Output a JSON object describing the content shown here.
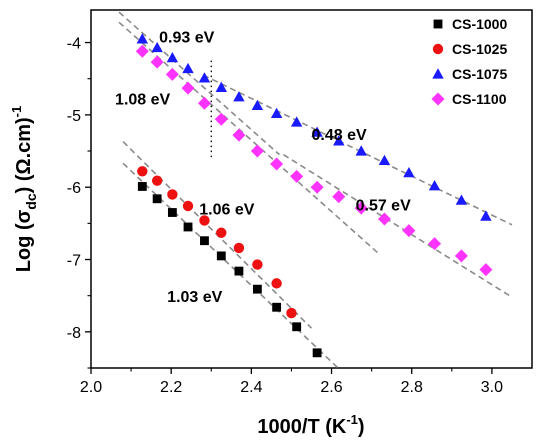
{
  "chart_data": {
    "type": "scatter",
    "xlabel": "1000/T (K⁻¹)",
    "xlabel_main": "1000/T (K",
    "xlabel_sup": "-1",
    "xlabel_close": ")",
    "ylabel_prefix": "Log (σ",
    "ylabel_sub": "dc",
    "ylabel_suffix": ") (Ω.cm)",
    "ylabel_sup": "-1",
    "xlim": [
      2.0,
      3.1
    ],
    "ylim": [
      -8.5,
      -3.55
    ],
    "xticks": [
      {
        "value": 2.0,
        "label": "2.0"
      },
      {
        "value": 2.2,
        "label": "2.2"
      },
      {
        "value": 2.4,
        "label": "2.4"
      },
      {
        "value": 2.6,
        "label": "2.6"
      },
      {
        "value": 2.8,
        "label": "2.8"
      },
      {
        "value": 3.0,
        "label": "3.0"
      }
    ],
    "yticks": [
      {
        "value": -4,
        "label": "-4"
      },
      {
        "value": -5,
        "label": "-5"
      },
      {
        "value": -6,
        "label": "-6"
      },
      {
        "value": -7,
        "label": "-7"
      },
      {
        "value": -8,
        "label": "-8"
      }
    ],
    "grid": false,
    "legend_position": "top-right",
    "series": [
      {
        "name": "CS-1000",
        "marker": "square",
        "color": "#000000",
        "x": [
          2.128,
          2.165,
          2.203,
          2.242,
          2.283,
          2.325,
          2.369,
          2.415,
          2.463,
          2.513,
          2.564
        ],
        "y": [
          -5.99,
          -6.16,
          -6.35,
          -6.55,
          -6.74,
          -6.95,
          -7.16,
          -7.41,
          -7.66,
          -7.93,
          -8.29
        ]
      },
      {
        "name": "CS-1025",
        "marker": "circle",
        "color": "#ee1111",
        "x": [
          2.128,
          2.165,
          2.203,
          2.242,
          2.283,
          2.325,
          2.369,
          2.415,
          2.463,
          2.5
        ],
        "y": [
          -5.78,
          -5.91,
          -6.1,
          -6.26,
          -6.46,
          -6.63,
          -6.84,
          -7.07,
          -7.33,
          -7.74
        ]
      },
      {
        "name": "CS-1075",
        "marker": "triangle",
        "color": "#1a1aff",
        "x": [
          2.128,
          2.165,
          2.203,
          2.242,
          2.283,
          2.325,
          2.369,
          2.415,
          2.463,
          2.513,
          2.564,
          2.618,
          2.674,
          2.732,
          2.793,
          2.857,
          2.924,
          2.985
        ],
        "y": [
          -3.95,
          -4.07,
          -4.21,
          -4.36,
          -4.49,
          -4.62,
          -4.75,
          -4.87,
          -4.98,
          -5.1,
          -5.24,
          -5.36,
          -5.5,
          -5.63,
          -5.8,
          -5.98,
          -6.18,
          -6.4
        ]
      },
      {
        "name": "CS-1100",
        "marker": "diamond",
        "color": "#ff33ff",
        "x": [
          2.128,
          2.165,
          2.203,
          2.242,
          2.283,
          2.325,
          2.369,
          2.415,
          2.463,
          2.513,
          2.564,
          2.618,
          2.674,
          2.732,
          2.793,
          2.857,
          2.924,
          2.985
        ],
        "y": [
          -4.12,
          -4.27,
          -4.44,
          -4.63,
          -4.84,
          -5.06,
          -5.28,
          -5.5,
          -5.68,
          -5.85,
          -6.0,
          -6.13,
          -6.29,
          -6.44,
          -6.6,
          -6.78,
          -6.95,
          -7.14
        ]
      }
    ],
    "fit_lines": [
      {
        "label": "0.93 eV",
        "x1": 2.07,
        "y1": -3.58,
        "x2": 2.47,
        "y2": -5.55
      },
      {
        "label": "1.08 eV",
        "x1": 2.07,
        "y1": -3.72,
        "x2": 2.72,
        "y2": -6.93
      },
      {
        "label": "0.48 eV",
        "x1": 2.28,
        "y1": -4.45,
        "x2": 3.05,
        "y2": -6.52
      },
      {
        "label": "0.57 eV",
        "x1": 2.48,
        "y1": -5.55,
        "x2": 3.05,
        "y2": -7.52
      },
      {
        "label": "1.06 eV",
        "x1": 2.08,
        "y1": -5.37,
        "x2": 2.55,
        "y2": -7.95
      },
      {
        "label": "1.03 eV",
        "x1": 2.08,
        "y1": -5.67,
        "x2": 2.62,
        "y2": -8.52
      }
    ],
    "annotations": [
      {
        "text": "0.93 eV",
        "x": 2.17,
        "y": -4.0
      },
      {
        "text": "1.08 eV",
        "x": 2.06,
        "y": -4.86
      },
      {
        "text": "0.48 eV",
        "x": 2.55,
        "y": -5.35
      },
      {
        "text": "0.57 eV",
        "x": 2.66,
        "y": -6.32
      },
      {
        "text": "1.06 eV",
        "x": 2.27,
        "y": -6.38
      },
      {
        "text": "1.03 eV",
        "x": 2.19,
        "y": -7.59
      }
    ],
    "marker_line": {
      "x": 2.3,
      "y_from": -4.25,
      "y_to": -5.6
    }
  }
}
